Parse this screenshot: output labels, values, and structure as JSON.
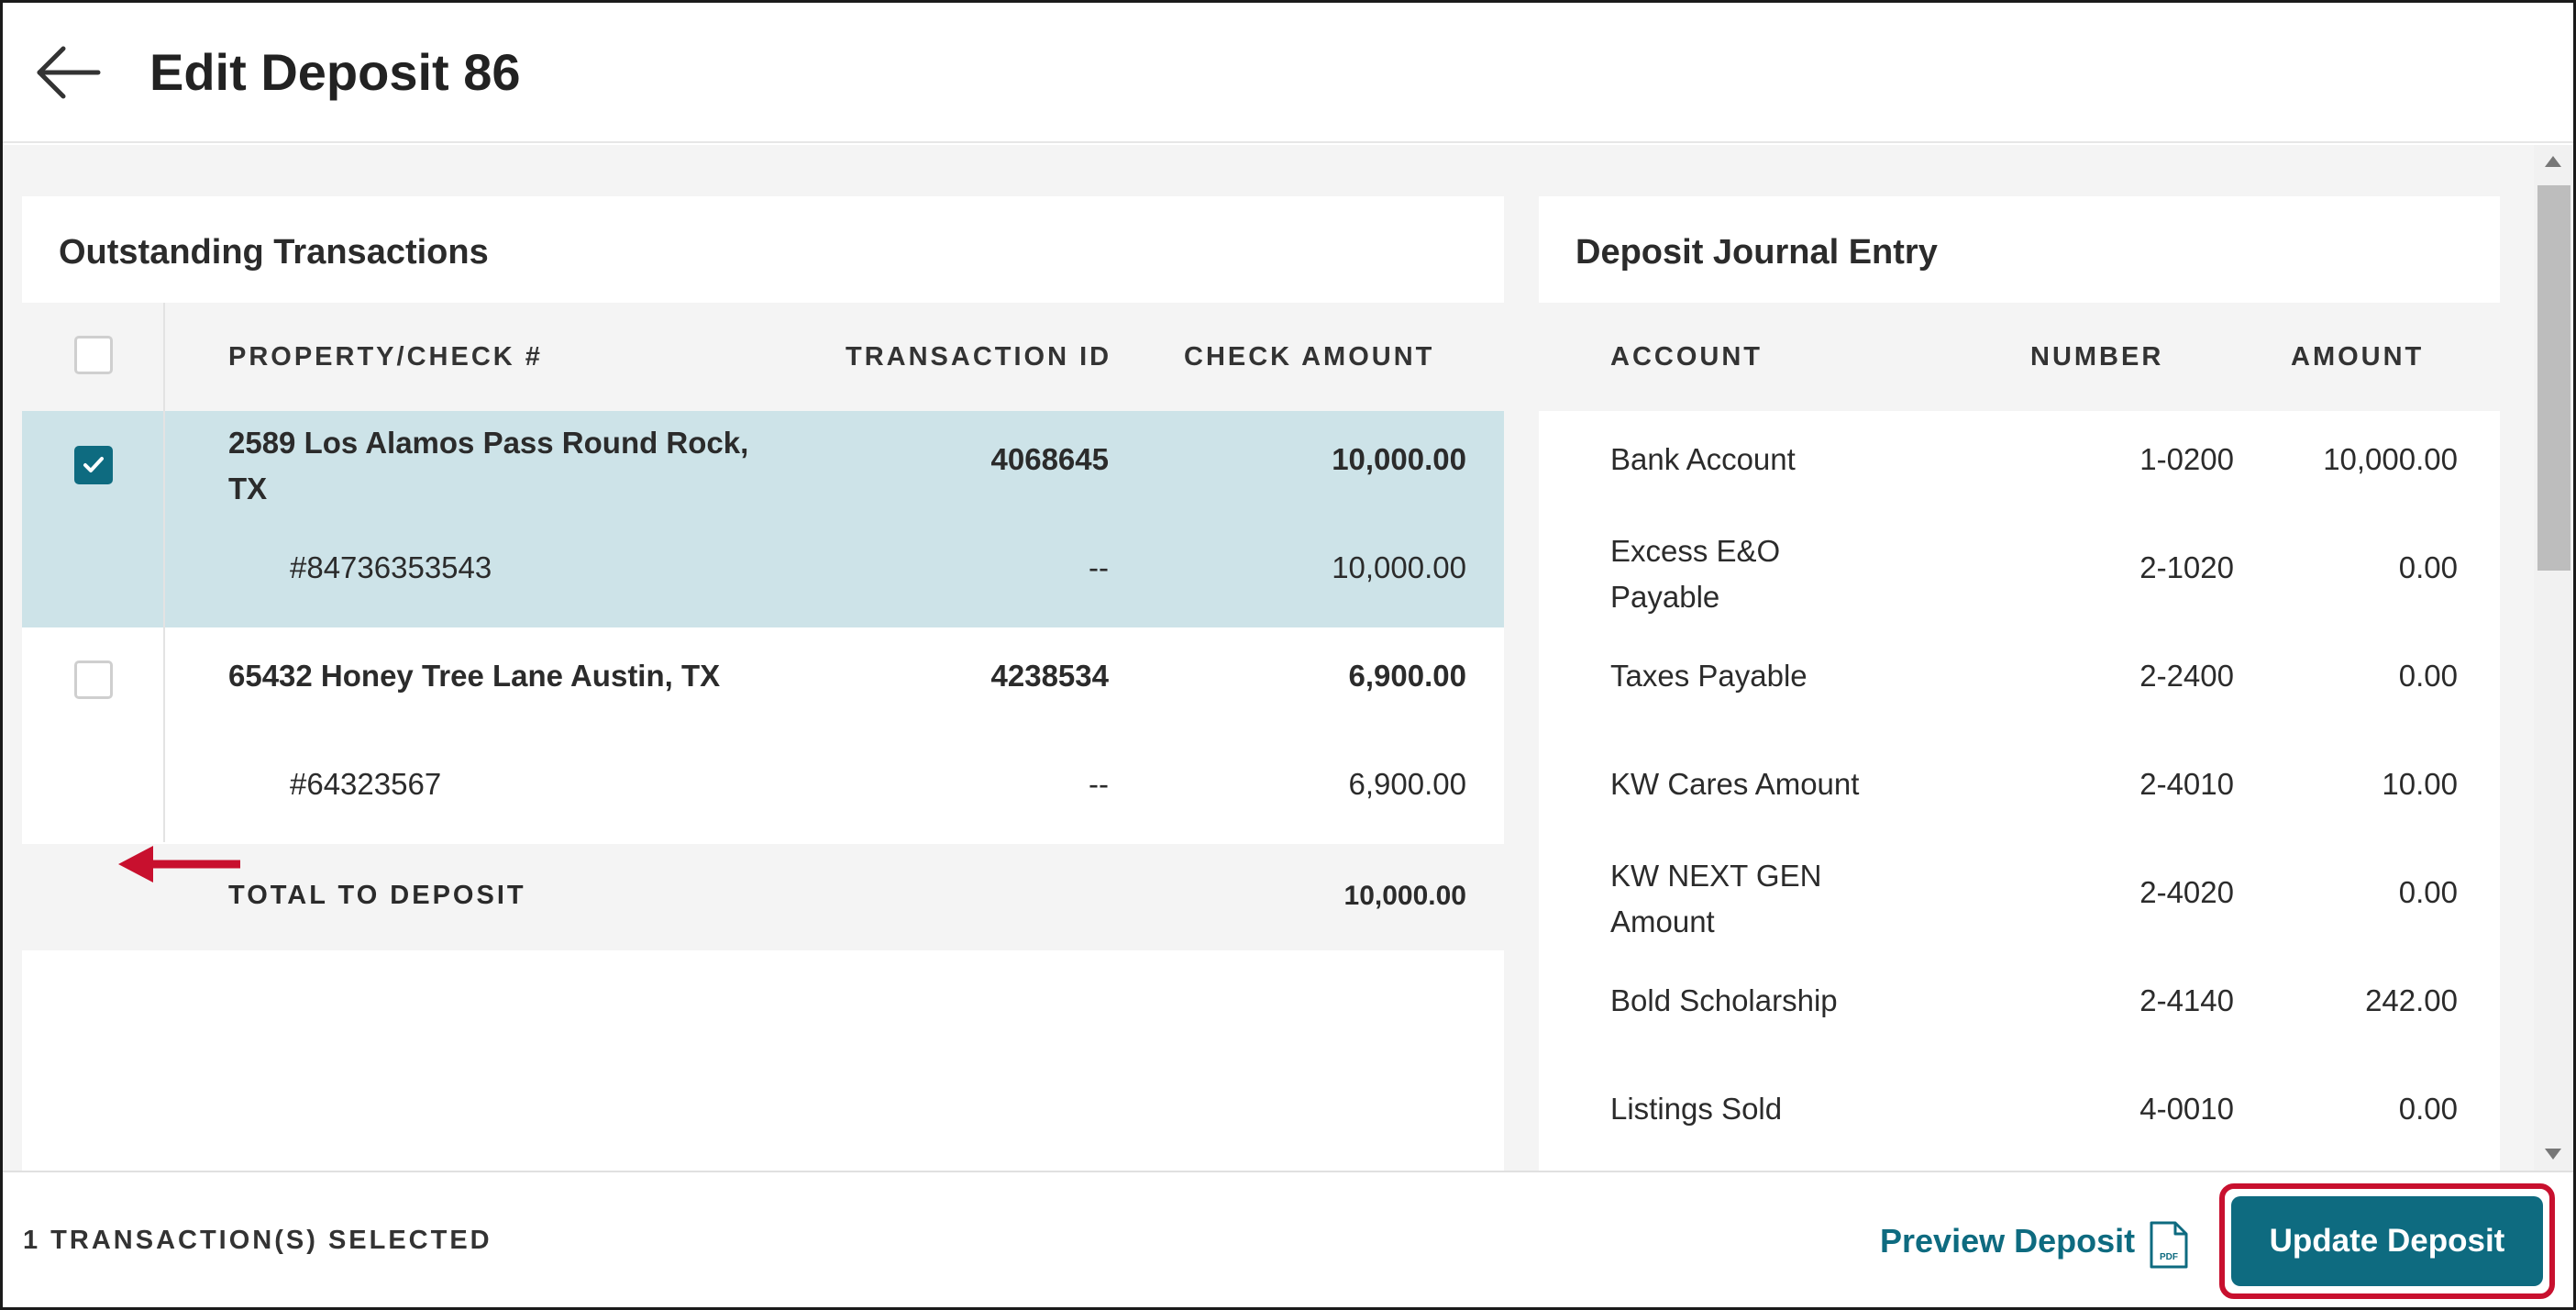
{
  "header": {
    "title": "Edit Deposit 86"
  },
  "outstanding": {
    "title": "Outstanding Transactions",
    "columns": {
      "property": "PROPERTY/CHECK #",
      "transaction_id": "TRANSACTION ID",
      "check_amount": "CHECK AMOUNT"
    },
    "rows": [
      {
        "property_line1": "2589 Los Alamos Pass Round Rock,",
        "property_line2": "TX",
        "transaction_id": "4068645",
        "amount": "10,000.00",
        "check_number": "#84736353543",
        "check_transaction_id": "--",
        "check_amount": "10,000.00",
        "selected": true
      },
      {
        "property_line1": "65432 Honey Tree Lane Austin, TX",
        "transaction_id": "4238534",
        "amount": "6,900.00",
        "check_number": "#64323567",
        "check_transaction_id": "--",
        "check_amount": "6,900.00",
        "selected": false
      }
    ],
    "total": {
      "label": "TOTAL TO DEPOSIT",
      "amount": "10,000.00"
    }
  },
  "journal": {
    "title": "Deposit Journal Entry",
    "columns": {
      "account": "ACCOUNT",
      "number": "NUMBER",
      "amount": "AMOUNT"
    },
    "rows": [
      {
        "account_line1": "Bank Account",
        "account_line2": "",
        "number": "1-0200",
        "amount": "10,000.00"
      },
      {
        "account_line1": "Excess E&O",
        "account_line2": "Payable",
        "number": "2-1020",
        "amount": "0.00"
      },
      {
        "account_line1": "Taxes Payable",
        "account_line2": "",
        "number": "2-2400",
        "amount": "0.00"
      },
      {
        "account_line1": "KW Cares Amount",
        "account_line2": "",
        "number": "2-4010",
        "amount": "10.00"
      },
      {
        "account_line1": "KW NEXT GEN",
        "account_line2": "Amount",
        "number": "2-4020",
        "amount": "0.00"
      },
      {
        "account_line1": "Bold Scholarship",
        "account_line2": "",
        "number": "2-4140",
        "amount": "242.00"
      },
      {
        "account_line1": "Listings Sold",
        "account_line2": "",
        "number": "4-0010",
        "amount": "0.00"
      }
    ]
  },
  "footer": {
    "status": "1 TRANSACTION(S) SELECTED",
    "preview_label": "Preview Deposit",
    "pdf_badge": "PDF",
    "update_label": "Update Deposit"
  },
  "colors": {
    "accent": "#0e6b80",
    "selected_row": "#cde3e8",
    "highlight": "#c8102e"
  },
  "icons": {
    "back": "arrow-left-icon",
    "pdf": "pdf-file-icon",
    "check": "checkmark-icon",
    "annotation": "red-arrow-icon"
  }
}
